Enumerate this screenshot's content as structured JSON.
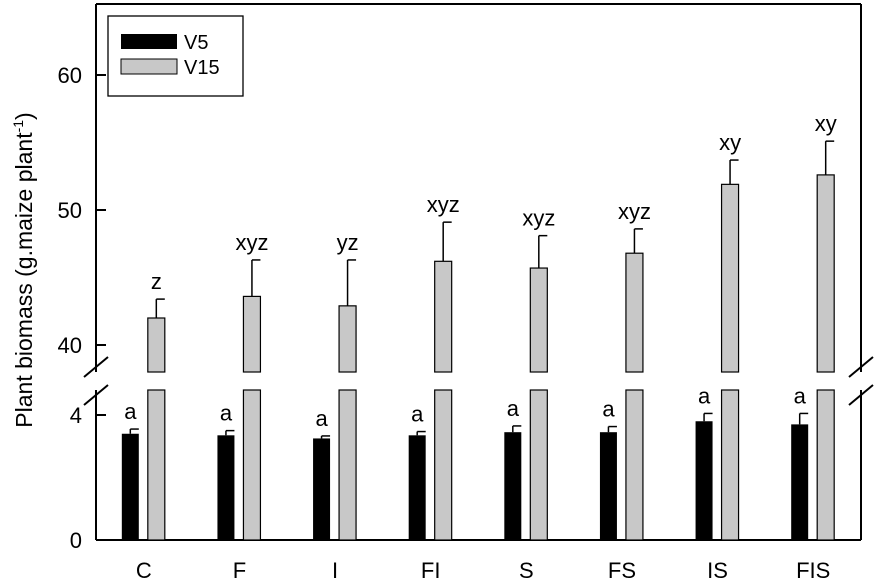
{
  "chart_data": {
    "type": "bar",
    "ylabel": "Plant biomass (g.maize plant",
    "ylabel_superscript": "-1",
    "ylabel_close": ")",
    "categories": [
      "C",
      "F",
      "I",
      "FI",
      "S",
      "FS",
      "IS",
      "FIS"
    ],
    "y_axis": {
      "broken": true,
      "lower_segment": {
        "range": [
          0,
          4
        ],
        "ticks": [
          0,
          4
        ]
      },
      "upper_segment": {
        "range": [
          38,
          65
        ],
        "ticks": [
          40,
          50,
          60
        ]
      },
      "tick_labels": [
        "0",
        "4",
        "40",
        "50",
        "60"
      ]
    },
    "legend_position": "top-left",
    "series": [
      {
        "name": "V5",
        "color": "#000000",
        "values": [
          3.4,
          3.35,
          3.25,
          3.35,
          3.45,
          3.45,
          3.8,
          3.7
        ],
        "errors": [
          0.15,
          0.15,
          0.08,
          0.12,
          0.2,
          0.18,
          0.25,
          0.35
        ],
        "significance": [
          "a",
          "a",
          "a",
          "a",
          "a",
          "a",
          "a",
          "a"
        ]
      },
      {
        "name": "V15",
        "color": "#c8c8c8",
        "values": [
          42.0,
          43.6,
          42.9,
          46.2,
          45.7,
          46.8,
          51.9,
          52.6
        ],
        "errors": [
          1.4,
          2.7,
          3.4,
          2.9,
          2.4,
          1.8,
          1.8,
          2.5
        ],
        "significance": [
          "z",
          "xyz",
          "yz",
          "xyz",
          "xyz",
          "xyz",
          "xy",
          "xy"
        ]
      }
    ]
  }
}
